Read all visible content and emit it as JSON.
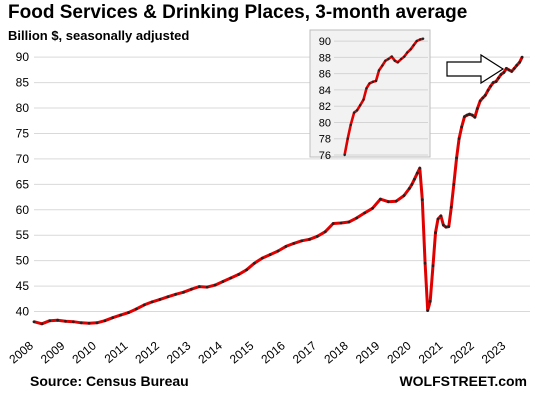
{
  "title": "Food Services & Drinking Places, 3-month average",
  "subtitle": "Billion $, seasonally adjusted",
  "source": "Source: Census Bureau",
  "brand": "WOLFSTREET.com",
  "colors": {
    "line": "#e00000",
    "marker": "#222222",
    "grid": "#d9d9d9",
    "inset_bg": "#f2f2f2"
  },
  "chart_data": [
    {
      "type": "line",
      "title": "Food Services & Drinking Places, 3-month average",
      "ylabel": "Billion $, seasonally adjusted",
      "xlabel": "",
      "ylim": [
        35,
        92
      ],
      "xlim": [
        2008.0,
        2023.75
      ],
      "y_ticks": [
        40,
        45,
        50,
        55,
        60,
        65,
        70,
        75,
        80,
        85,
        90
      ],
      "x_ticks": [
        "2008",
        "2009",
        "2010",
        "2011",
        "2012",
        "2013",
        "2014",
        "2015",
        "2016",
        "2017",
        "2018",
        "2019",
        "2020",
        "2021",
        "2022",
        "2023"
      ],
      "grid": "horizontal",
      "series": [
        {
          "x": [
            2008.0,
            2008.25,
            2008.5,
            2008.75,
            2009.0,
            2009.25,
            2009.5,
            2009.75,
            2010.0,
            2010.25,
            2010.5,
            2010.75,
            2011.0,
            2011.25,
            2011.5,
            2011.75,
            2012.0,
            2012.25,
            2012.5,
            2012.75,
            2013.0,
            2013.25,
            2013.5,
            2013.75,
            2014.0,
            2014.25,
            2014.5,
            2014.75,
            2015.0,
            2015.25,
            2015.5,
            2015.75,
            2016.0,
            2016.25,
            2016.5,
            2016.75,
            2017.0,
            2017.25,
            2017.5,
            2017.75,
            2018.0,
            2018.25,
            2018.5,
            2018.75,
            2019.0,
            2019.25,
            2019.5,
            2019.75,
            2019.92,
            2020.0,
            2020.08,
            2020.17,
            2020.25,
            2020.33,
            2020.42,
            2020.5,
            2020.58,
            2020.67,
            2020.75,
            2020.83,
            2020.92,
            2021.0,
            2021.08,
            2021.17,
            2021.25,
            2021.33,
            2021.42,
            2021.5,
            2021.58,
            2021.67,
            2021.75,
            2021.83,
            2021.92,
            2022.0,
            2022.08,
            2022.17,
            2022.25,
            2022.33,
            2022.42,
            2022.5,
            2022.58,
            2022.67,
            2022.75,
            2022.83,
            2022.92,
            2023.0,
            2023.08,
            2023.17,
            2023.25,
            2023.33,
            2023.42,
            2023.5
          ],
          "values": [
            38.0,
            37.6,
            38.2,
            38.3,
            38.1,
            38.0,
            37.8,
            37.7,
            37.8,
            38.2,
            38.8,
            39.3,
            39.8,
            40.5,
            41.3,
            41.9,
            42.4,
            42.9,
            43.4,
            43.8,
            44.4,
            44.9,
            44.8,
            45.2,
            45.9,
            46.6,
            47.3,
            48.2,
            49.5,
            50.5,
            51.2,
            51.9,
            52.8,
            53.4,
            53.9,
            54.2,
            54.8,
            55.7,
            57.3,
            57.4,
            57.6,
            58.4,
            59.4,
            60.3,
            62.1,
            61.6,
            61.7,
            62.8,
            64.2,
            65.0,
            66.0,
            67.2,
            68.2,
            62.0,
            49.5,
            40.2,
            42.0,
            49.0,
            55.5,
            58.2,
            58.8,
            57.0,
            56.6,
            56.7,
            60.5,
            65.0,
            70.2,
            74.0,
            76.3,
            78.3,
            78.6,
            78.8,
            78.6,
            78.2,
            79.9,
            81.4,
            82.0,
            82.5,
            83.5,
            84.3,
            85.0,
            85.2,
            85.9,
            86.6,
            87.0,
            87.8,
            87.5,
            87.2,
            87.8,
            88.4,
            89.0,
            90.0
          ]
        }
      ]
    },
    {
      "type": "line",
      "title": "",
      "ylim": [
        76,
        91
      ],
      "xlim": [
        2021.35,
        2023.55
      ],
      "y_ticks": [
        76,
        78,
        80,
        82,
        84,
        86,
        88,
        90
      ],
      "grid": "horizontal",
      "series": [
        {
          "x": [
            2021.42,
            2021.5,
            2021.58,
            2021.67,
            2021.75,
            2021.83,
            2021.92,
            2022.0,
            2022.08,
            2022.17,
            2022.25,
            2022.33,
            2022.42,
            2022.5,
            2022.58,
            2022.67,
            2022.75,
            2022.83,
            2022.92,
            2023.0,
            2023.08,
            2023.17,
            2023.25,
            2023.33,
            2023.42,
            2023.5
          ],
          "values": [
            76.0,
            78.0,
            79.7,
            81.2,
            81.5,
            82.1,
            82.8,
            84.2,
            84.8,
            85.0,
            85.1,
            86.4,
            87.0,
            87.6,
            87.8,
            88.1,
            87.6,
            87.4,
            87.8,
            88.1,
            88.6,
            89.0,
            89.5,
            90.0,
            90.2,
            90.3
          ]
        }
      ]
    }
  ]
}
